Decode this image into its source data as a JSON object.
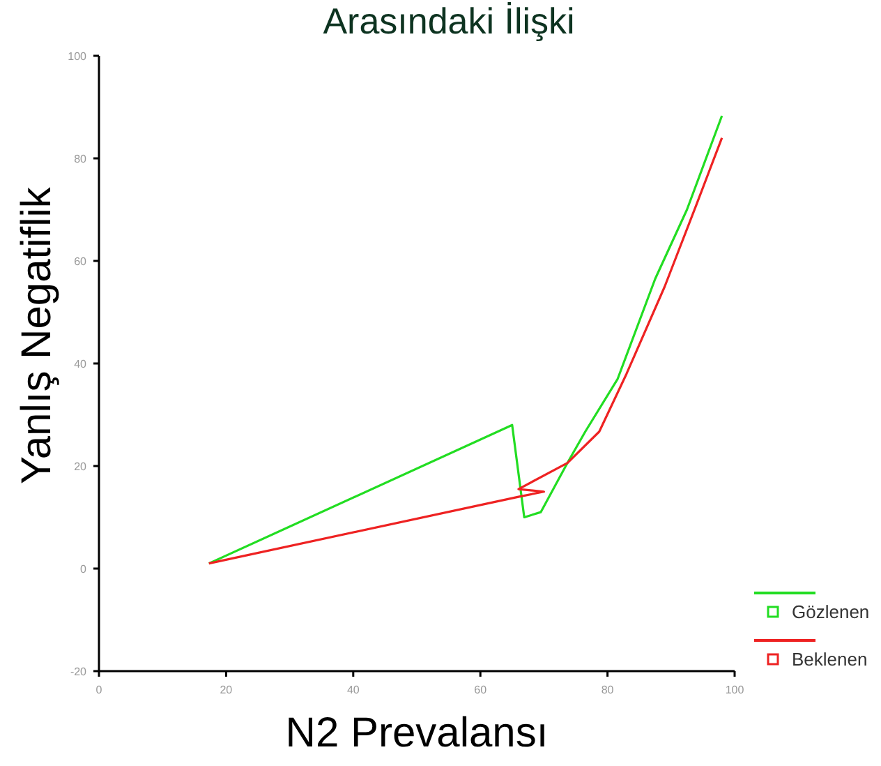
{
  "chart_data": {
    "type": "line",
    "title": "Arasındaki İlişki",
    "xlabel": "N2 Prevalansı",
    "ylabel": "Yanlış Negatiflik",
    "xlim": [
      0,
      100
    ],
    "xticks": [
      0,
      20,
      40,
      60,
      80,
      100
    ],
    "ylim": [
      -20,
      100
    ],
    "yticks": [
      -20,
      0,
      20,
      40,
      60,
      80,
      100
    ],
    "grid": false,
    "legend": "bottom right",
    "marker": "none",
    "line_style": "solid",
    "series": [
      {
        "name": "Gözlenen",
        "color": "#22dd22",
        "x": [
          17.3,
          65,
          66.9,
          69.5,
          73.7,
          76.5,
          81.6,
          87.5,
          92.5,
          98
        ],
        "values": [
          1,
          28,
          10,
          11,
          20.6,
          26.7,
          37,
          56.5,
          70,
          88.3
        ]
      },
      {
        "name": "Beklenen",
        "color": "#ee2222",
        "x": [
          17.3,
          66,
          70,
          66,
          73.7,
          78.7,
          83,
          89,
          94,
          98
        ],
        "values": [
          1,
          14,
          15,
          15.5,
          20.6,
          26.7,
          38,
          55,
          71,
          84
        ]
      }
    ]
  }
}
